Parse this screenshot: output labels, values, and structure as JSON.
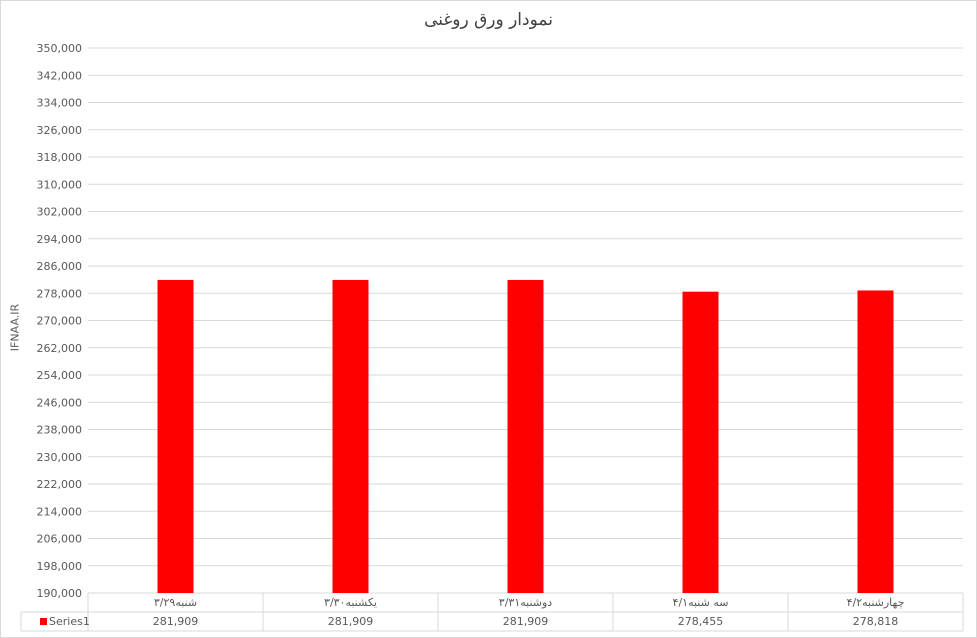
{
  "chart_data": {
    "type": "bar",
    "title": "نمودار ورق روغنی",
    "xlabel": "",
    "ylabel": "IFNAA.IR",
    "categories": [
      "شنبه۳/۲۹",
      "یکشنبه۳/۳۰",
      "دوشنبه۳/۳۱",
      "سه شنبه۴/۱",
      "چهارشنبه۴/۲"
    ],
    "series": [
      {
        "name": "Series1",
        "values": [
          281909,
          281909,
          281909,
          278455,
          278818
        ],
        "color": "#ff0000"
      }
    ],
    "value_labels": [
      "281,909",
      "281,909",
      "281,909",
      "278,455",
      "278,818"
    ],
    "ylim": [
      190000,
      350000
    ],
    "ytick_step": 8000,
    "grid": true,
    "legend": "data-table"
  }
}
